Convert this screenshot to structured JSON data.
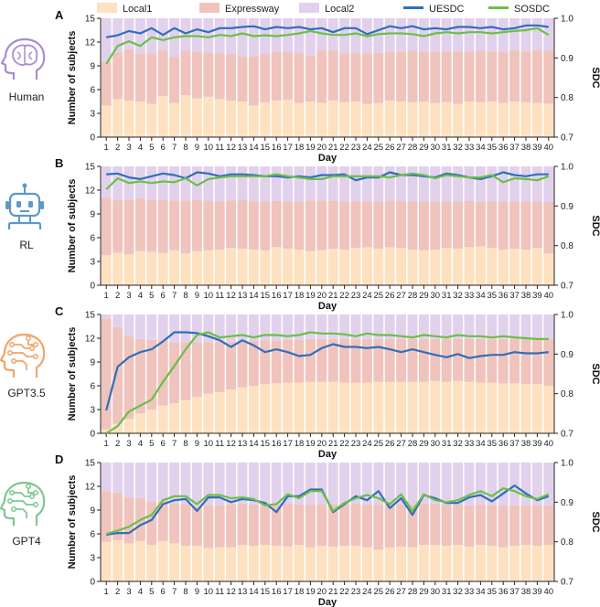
{
  "legend": [
    {
      "label": "Local1",
      "color": "#fde1c0",
      "kind": "swatch"
    },
    {
      "label": "Expressway",
      "color": "#f0c3bd",
      "kind": "swatch"
    },
    {
      "label": "Local2",
      "color": "#e2d1ec",
      "kind": "swatch"
    },
    {
      "label": "UESDC",
      "color": "#2f6fba",
      "kind": "line"
    },
    {
      "label": "SOSDC",
      "color": "#6bbf48",
      "kind": "line"
    }
  ],
  "colors": {
    "local1": "#fde1c0",
    "expressway": "#f0c3bd",
    "local2": "#e2d1ec",
    "uesdc": "#2f6fba",
    "sosdc": "#6bbf48"
  },
  "chart_data": [
    {
      "panel": "A",
      "agent": "Human",
      "agent_icon": "human-head-brain-icon",
      "agent_color": "#a98ccf",
      "type": "bar",
      "stacked": true,
      "xlabel": "Day",
      "ylabel": "Number of subjects",
      "y2label": "SDC",
      "ylim": [
        0,
        15
      ],
      "yticks": [
        0,
        3,
        6,
        9,
        12,
        15
      ],
      "y2lim": [
        0.7,
        1.0
      ],
      "y2ticks": [
        0.7,
        0.8,
        0.9,
        1.0
      ],
      "categories": [
        "1",
        "2",
        "3",
        "4",
        "5",
        "6",
        "7",
        "8",
        "9",
        "10",
        "11",
        "12",
        "13",
        "14",
        "15",
        "16",
        "17",
        "18",
        "19",
        "20",
        "21",
        "22",
        "23",
        "24",
        "25",
        "26",
        "27",
        "28",
        "29",
        "30",
        "31",
        "32",
        "33",
        "34",
        "35",
        "36",
        "37",
        "38",
        "39",
        "40"
      ],
      "local1": [
        4.0,
        4.8,
        4.6,
        4.5,
        4.2,
        5.2,
        4.3,
        5.3,
        4.9,
        5.1,
        4.8,
        4.6,
        4.5,
        4.0,
        4.4,
        4.6,
        4.7,
        4.3,
        4.5,
        4.3,
        4.6,
        4.4,
        4.5,
        4.2,
        4.3,
        4.6,
        4.5,
        4.4,
        4.5,
        4.3,
        4.4,
        4.2,
        4.5,
        4.4,
        4.5,
        4.3,
        4.5,
        4.4,
        4.3,
        4.2
      ],
      "expressway": [
        5.5,
        5.9,
        6.5,
        6.0,
        6.4,
        5.8,
        5.8,
        5.6,
        5.9,
        5.6,
        5.8,
        5.9,
        5.7,
        6.2,
        6.1,
        6.2,
        6.1,
        6.3,
        5.8,
        6.6,
        6.4,
        6.2,
        6.1,
        6.4,
        6.4,
        6.2,
        6.3,
        6.5,
        6.3,
        6.5,
        6.4,
        6.6,
        6.3,
        6.5,
        6.3,
        6.5,
        6.5,
        6.4,
        6.7,
        6.8
      ],
      "local2": [
        5.5,
        4.3,
        3.9,
        4.5,
        4.4,
        4.0,
        4.9,
        4.1,
        4.2,
        4.3,
        4.4,
        4.5,
        4.8,
        4.8,
        4.5,
        4.2,
        4.2,
        4.4,
        4.7,
        4.1,
        4.0,
        4.4,
        4.4,
        4.4,
        4.3,
        4.2,
        4.2,
        4.1,
        4.2,
        4.2,
        4.2,
        4.2,
        4.2,
        4.1,
        4.2,
        4.2,
        4.0,
        4.2,
        4.0,
        4.0
      ],
      "series": [
        {
          "name": "UESDC",
          "values": [
            0.952,
            0.957,
            0.968,
            0.962,
            0.975,
            0.958,
            0.975,
            0.962,
            0.972,
            0.965,
            0.975,
            0.975,
            0.978,
            0.98,
            0.972,
            0.978,
            0.975,
            0.978,
            0.972,
            0.975,
            0.965,
            0.975,
            0.975,
            0.96,
            0.97,
            0.98,
            0.975,
            0.98,
            0.972,
            0.975,
            0.972,
            0.978,
            0.978,
            0.975,
            0.978,
            0.972,
            0.975,
            0.982,
            0.982,
            0.978
          ]
        },
        {
          "name": "SOSDC",
          "values": [
            0.885,
            0.93,
            0.942,
            0.93,
            0.952,
            0.945,
            0.952,
            0.955,
            0.955,
            0.952,
            0.958,
            0.955,
            0.962,
            0.955,
            0.957,
            0.955,
            0.958,
            0.962,
            0.968,
            0.962,
            0.958,
            0.958,
            0.962,
            0.955,
            0.96,
            0.962,
            0.962,
            0.96,
            0.955,
            0.962,
            0.965,
            0.962,
            0.965,
            0.965,
            0.962,
            0.965,
            0.968,
            0.97,
            0.975,
            0.958
          ]
        }
      ]
    },
    {
      "panel": "B",
      "agent": "RL",
      "agent_icon": "robot-icon",
      "agent_color": "#5d98c9",
      "type": "bar",
      "stacked": true,
      "xlabel": "Day",
      "ylabel": "Number of subjects",
      "y2label": "SDC",
      "ylim": [
        0,
        15
      ],
      "yticks": [
        0,
        3,
        6,
        9,
        12,
        15
      ],
      "y2lim": [
        0.7,
        1.0
      ],
      "y2ticks": [
        0.7,
        0.8,
        0.9,
        1.0
      ],
      "categories": [
        "1",
        "2",
        "3",
        "4",
        "5",
        "6",
        "7",
        "8",
        "9",
        "10",
        "11",
        "12",
        "13",
        "14",
        "15",
        "16",
        "17",
        "18",
        "19",
        "20",
        "21",
        "22",
        "23",
        "24",
        "25",
        "26",
        "27",
        "28",
        "29",
        "30",
        "31",
        "32",
        "33",
        "34",
        "35",
        "36",
        "37",
        "38",
        "39",
        "40"
      ],
      "local1": [
        3.8,
        4.1,
        3.9,
        4.3,
        4.2,
        4.1,
        4.4,
        4.0,
        4.3,
        4.4,
        4.5,
        4.7,
        4.6,
        4.5,
        4.4,
        4.8,
        4.6,
        4.5,
        4.3,
        4.4,
        4.6,
        4.5,
        4.7,
        4.8,
        4.6,
        4.8,
        4.7,
        4.5,
        4.4,
        4.5,
        4.7,
        4.6,
        4.8,
        4.9,
        4.7,
        4.5,
        4.6,
        4.5,
        4.7,
        4.0
      ],
      "expressway": [
        7.3,
        6.7,
        6.9,
        6.7,
        6.6,
        6.7,
        6.3,
        6.7,
        6.5,
        6.3,
        6.1,
        6.0,
        6.2,
        6.1,
        6.2,
        5.9,
        6.0,
        6.1,
        6.4,
        6.3,
        6.1,
        6.1,
        5.9,
        5.8,
        6.0,
        5.9,
        5.9,
        6.1,
        6.2,
        6.0,
        5.8,
        6.0,
        5.9,
        5.6,
        5.9,
        6.0,
        6.0,
        6.1,
        5.9,
        6.5
      ],
      "local2": [
        3.9,
        4.2,
        4.2,
        4.0,
        4.2,
        4.2,
        4.3,
        4.3,
        4.2,
        4.3,
        4.4,
        4.3,
        4.2,
        4.4,
        4.4,
        4.3,
        4.4,
        4.4,
        4.3,
        4.3,
        4.3,
        4.4,
        4.4,
        4.4,
        4.4,
        4.3,
        4.4,
        4.4,
        4.4,
        4.5,
        4.5,
        4.4,
        4.3,
        4.5,
        4.4,
        4.5,
        4.4,
        4.4,
        4.4,
        4.5
      ],
      "series": [
        {
          "name": "UESDC",
          "values": [
            0.98,
            0.982,
            0.972,
            0.968,
            0.975,
            0.982,
            0.978,
            0.97,
            0.985,
            0.982,
            0.975,
            0.98,
            0.98,
            0.978,
            0.975,
            0.975,
            0.972,
            0.975,
            0.972,
            0.978,
            0.978,
            0.98,
            0.965,
            0.972,
            0.972,
            0.985,
            0.978,
            0.978,
            0.975,
            0.972,
            0.982,
            0.978,
            0.972,
            0.968,
            0.975,
            0.985,
            0.978,
            0.975,
            0.98,
            0.98
          ]
        },
        {
          "name": "SOSDC",
          "values": [
            0.942,
            0.97,
            0.958,
            0.962,
            0.958,
            0.962,
            0.96,
            0.97,
            0.952,
            0.968,
            0.972,
            0.975,
            0.975,
            0.975,
            0.975,
            0.98,
            0.975,
            0.972,
            0.968,
            0.968,
            0.975,
            0.975,
            0.975,
            0.975,
            0.975,
            0.972,
            0.978,
            0.982,
            0.978,
            0.97,
            0.978,
            0.975,
            0.972,
            0.972,
            0.978,
            0.96,
            0.97,
            0.968,
            0.965,
            0.975
          ]
        }
      ]
    },
    {
      "panel": "C",
      "agent": "GPT3.5",
      "agent_icon": "ai-head-circuit-icon",
      "agent_color": "#f2a46a",
      "type": "bar",
      "stacked": true,
      "xlabel": "Day",
      "ylabel": "Number of subjects",
      "y2label": "SDC",
      "ylim": [
        0,
        15
      ],
      "yticks": [
        0,
        3,
        6,
        9,
        12,
        15
      ],
      "y2lim": [
        0.7,
        1.0
      ],
      "y2ticks": [
        0.7,
        0.8,
        0.9,
        1.0
      ],
      "categories": [
        "1",
        "2",
        "3",
        "4",
        "5",
        "6",
        "7",
        "8",
        "9",
        "10",
        "11",
        "12",
        "13",
        "14",
        "15",
        "16",
        "17",
        "18",
        "19",
        "20",
        "21",
        "22",
        "23",
        "24",
        "25",
        "26",
        "27",
        "28",
        "29",
        "30",
        "31",
        "32",
        "33",
        "34",
        "35",
        "36",
        "37",
        "38",
        "39",
        "40"
      ],
      "local1": [
        0.5,
        1.2,
        1.8,
        2.5,
        3.0,
        3.5,
        3.8,
        4.2,
        4.6,
        5.0,
        5.2,
        5.5,
        5.8,
        6.0,
        6.2,
        6.3,
        6.4,
        6.4,
        6.5,
        6.5,
        6.5,
        6.4,
        6.4,
        6.4,
        6.5,
        6.5,
        6.5,
        6.5,
        6.5,
        6.6,
        6.5,
        6.6,
        6.5,
        6.4,
        6.4,
        6.3,
        6.3,
        6.2,
        6.2,
        6.0
      ],
      "expressway": [
        14.0,
        12.2,
        10.5,
        9.4,
        8.8,
        8.2,
        7.7,
        7.3,
        6.9,
        6.5,
        6.3,
        6.0,
        5.8,
        5.6,
        5.5,
        5.4,
        5.4,
        5.4,
        5.4,
        5.4,
        5.4,
        5.5,
        5.5,
        5.5,
        5.4,
        5.4,
        5.4,
        5.4,
        5.4,
        5.3,
        5.4,
        5.3,
        5.4,
        5.5,
        5.5,
        5.6,
        5.6,
        5.7,
        5.7,
        5.9
      ],
      "local2": [
        0.5,
        1.6,
        2.7,
        3.1,
        3.2,
        3.3,
        3.5,
        3.5,
        3.5,
        3.5,
        3.5,
        3.5,
        3.4,
        3.4,
        3.3,
        3.3,
        3.2,
        3.2,
        3.1,
        3.1,
        3.1,
        3.1,
        3.1,
        3.1,
        3.1,
        3.1,
        3.1,
        3.1,
        3.1,
        3.1,
        3.1,
        3.1,
        3.1,
        3.1,
        3.1,
        3.1,
        3.1,
        3.1,
        3.1,
        3.1
      ],
      "series": [
        {
          "name": "UESDC",
          "values": [
            0.758,
            0.868,
            0.892,
            0.905,
            0.912,
            0.932,
            0.955,
            0.955,
            0.953,
            0.945,
            0.935,
            0.918,
            0.935,
            0.922,
            0.905,
            0.912,
            0.905,
            0.895,
            0.898,
            0.915,
            0.925,
            0.918,
            0.918,
            0.915,
            0.918,
            0.912,
            0.905,
            0.912,
            0.905,
            0.898,
            0.892,
            0.9,
            0.89,
            0.895,
            0.898,
            0.898,
            0.905,
            0.902,
            0.902,
            0.905
          ]
        },
        {
          "name": "SOSDC",
          "values": [
            0.7,
            0.718,
            0.755,
            0.77,
            0.785,
            0.83,
            0.87,
            0.912,
            0.948,
            0.955,
            0.942,
            0.945,
            0.948,
            0.942,
            0.948,
            0.948,
            0.945,
            0.948,
            0.955,
            0.952,
            0.952,
            0.95,
            0.945,
            0.952,
            0.948,
            0.948,
            0.945,
            0.942,
            0.948,
            0.945,
            0.942,
            0.948,
            0.945,
            0.945,
            0.942,
            0.945,
            0.942,
            0.94,
            0.938,
            0.938
          ]
        }
      ]
    },
    {
      "panel": "D",
      "agent": "GPT4",
      "agent_icon": "ai-head-circuit-icon",
      "agent_color": "#7dc890",
      "type": "bar",
      "stacked": true,
      "xlabel": "Day",
      "ylabel": "Number of subjects",
      "y2label": "SDC",
      "ylim": [
        0,
        15
      ],
      "yticks": [
        0,
        3,
        6,
        9,
        12,
        15
      ],
      "y2lim": [
        0.7,
        1.0
      ],
      "y2ticks": [
        0.7,
        0.8,
        0.9,
        1.0
      ],
      "categories": [
        "1",
        "2",
        "3",
        "4",
        "5",
        "6",
        "7",
        "8",
        "9",
        "10",
        "11",
        "12",
        "13",
        "14",
        "15",
        "16",
        "17",
        "18",
        "19",
        "20",
        "21",
        "22",
        "23",
        "24",
        "25",
        "26",
        "27",
        "28",
        "29",
        "30",
        "31",
        "32",
        "33",
        "34",
        "35",
        "36",
        "37",
        "38",
        "39",
        "40"
      ],
      "local1": [
        5.0,
        5.2,
        4.8,
        5.1,
        4.6,
        5.1,
        4.8,
        4.5,
        4.5,
        4.2,
        4.3,
        4.3,
        4.6,
        4.5,
        4.6,
        4.5,
        4.4,
        4.6,
        4.3,
        4.5,
        4.4,
        4.5,
        4.5,
        4.3,
        4.0,
        4.3,
        4.4,
        4.3,
        4.6,
        4.6,
        4.5,
        4.6,
        4.4,
        4.6,
        4.5,
        4.3,
        4.5,
        4.6,
        4.5,
        4.6
      ],
      "expressway": [
        6.4,
        6.0,
        5.8,
        5.4,
        5.5,
        5.0,
        5.0,
        5.2,
        5.0,
        5.4,
        5.3,
        5.4,
        5.2,
        5.2,
        5.0,
        5.2,
        5.4,
        5.1,
        5.4,
        5.2,
        5.3,
        5.3,
        5.3,
        5.4,
        5.7,
        5.4,
        5.3,
        5.4,
        5.2,
        5.2,
        5.2,
        5.1,
        5.2,
        5.1,
        5.1,
        5.3,
        5.1,
        5.0,
        5.1,
        5.0
      ],
      "local2": [
        3.6,
        3.8,
        4.4,
        4.5,
        4.9,
        4.9,
        5.2,
        5.3,
        5.5,
        5.4,
        5.4,
        5.3,
        5.2,
        5.3,
        5.4,
        5.3,
        5.2,
        5.3,
        5.3,
        5.3,
        5.3,
        5.2,
        5.2,
        5.3,
        5.3,
        5.3,
        5.3,
        5.3,
        5.2,
        5.2,
        5.3,
        5.3,
        5.4,
        5.3,
        5.4,
        5.4,
        5.4,
        5.4,
        5.4,
        5.4
      ],
      "series": [
        {
          "name": "UESDC",
          "values": [
            0.818,
            0.822,
            0.822,
            0.842,
            0.855,
            0.895,
            0.905,
            0.908,
            0.878,
            0.912,
            0.912,
            0.9,
            0.908,
            0.905,
            0.898,
            0.875,
            0.915,
            0.915,
            0.932,
            0.932,
            0.875,
            0.895,
            0.915,
            0.905,
            0.928,
            0.885,
            0.91,
            0.868,
            0.918,
            0.91,
            0.898,
            0.898,
            0.912,
            0.918,
            0.902,
            0.922,
            0.942,
            0.922,
            0.905,
            0.915
          ]
        },
        {
          "name": "SOSDC",
          "values": [
            0.82,
            0.828,
            0.838,
            0.855,
            0.868,
            0.905,
            0.915,
            0.915,
            0.895,
            0.918,
            0.918,
            0.91,
            0.912,
            0.908,
            0.892,
            0.895,
            0.92,
            0.91,
            0.928,
            0.928,
            0.878,
            0.898,
            0.91,
            0.918,
            0.91,
            0.895,
            0.92,
            0.878,
            0.92,
            0.905,
            0.9,
            0.905,
            0.918,
            0.928,
            0.915,
            0.935,
            0.928,
            0.915,
            0.908,
            0.92
          ]
        }
      ]
    }
  ]
}
